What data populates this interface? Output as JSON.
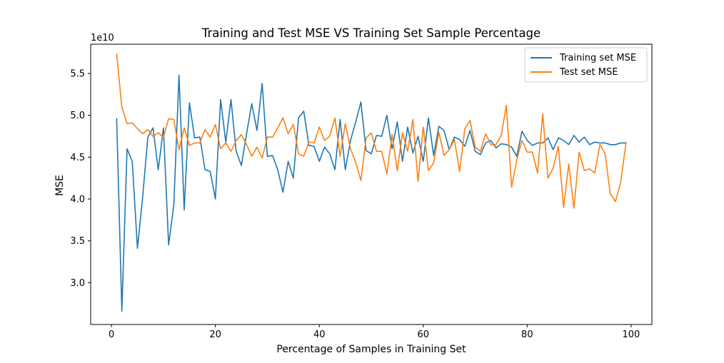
{
  "chart_data": {
    "type": "line",
    "title": "Training and Test MSE VS Training Set Sample Percentage",
    "xlabel": "Percentage of Samples in Training Set",
    "ylabel": "MSE",
    "y_offset_label": "1e10",
    "xlim": [
      -4,
      104
    ],
    "ylim": [
      2.5,
      5.85
    ],
    "xticks": [
      0,
      20,
      40,
      60,
      80,
      100
    ],
    "yticks": [
      3.0,
      3.5,
      4.0,
      4.5,
      5.0,
      5.5
    ],
    "xtick_labels": [
      "0",
      "20",
      "40",
      "60",
      "80",
      "100"
    ],
    "ytick_labels": [
      "3.0",
      "3.5",
      "4.0",
      "4.5",
      "5.0",
      "5.5"
    ],
    "grid": false,
    "legend_position": "top-right",
    "x": [
      1,
      2,
      3,
      4,
      5,
      6,
      7,
      8,
      9,
      10,
      11,
      12,
      13,
      14,
      15,
      16,
      17,
      18,
      19,
      20,
      21,
      22,
      23,
      24,
      25,
      26,
      27,
      28,
      29,
      30,
      31,
      32,
      33,
      34,
      35,
      36,
      37,
      38,
      39,
      40,
      41,
      42,
      43,
      44,
      45,
      46,
      47,
      48,
      49,
      50,
      51,
      52,
      53,
      54,
      55,
      56,
      57,
      58,
      59,
      60,
      61,
      62,
      63,
      64,
      65,
      66,
      67,
      68,
      69,
      70,
      71,
      72,
      73,
      74,
      75,
      76,
      77,
      78,
      79,
      80,
      81,
      82,
      83,
      84,
      85,
      86,
      87,
      88,
      89,
      90,
      91,
      92,
      93,
      94,
      95,
      96,
      97,
      98,
      99
    ],
    "series": [
      {
        "name": "Training set MSE",
        "color": "#1f77b4",
        "values": [
          4.96,
          2.66,
          4.6,
          4.45,
          3.41,
          4.02,
          4.74,
          4.85,
          4.35,
          4.85,
          3.45,
          3.93,
          5.48,
          3.87,
          5.15,
          4.73,
          4.74,
          4.35,
          4.33,
          4.0,
          5.19,
          4.68,
          5.19,
          4.57,
          4.4,
          4.78,
          5.14,
          4.82,
          5.38,
          4.51,
          4.52,
          4.35,
          4.08,
          4.45,
          4.25,
          4.97,
          5.05,
          4.64,
          4.63,
          4.45,
          4.62,
          4.54,
          4.35,
          4.95,
          4.35,
          4.7,
          4.92,
          5.16,
          4.58,
          4.54,
          4.76,
          4.75,
          5.0,
          4.6,
          4.92,
          4.45,
          4.86,
          4.55,
          4.75,
          4.45,
          4.97,
          4.52,
          4.87,
          4.82,
          4.59,
          4.74,
          4.71,
          4.63,
          4.82,
          4.57,
          4.53,
          4.67,
          4.7,
          4.61,
          4.66,
          4.65,
          4.62,
          4.51,
          4.81,
          4.7,
          4.64,
          4.67,
          4.67,
          4.73,
          4.59,
          4.73,
          4.7,
          4.65,
          4.76,
          4.68,
          4.74,
          4.65,
          4.68,
          4.67,
          4.67,
          4.65,
          4.65,
          4.67,
          4.67
        ],
        "values_tail_note": ""
      },
      {
        "name": "Test set MSE",
        "color": "#ff7f0e",
        "values": [
          5.73,
          5.1,
          4.9,
          4.91,
          4.84,
          4.78,
          4.83,
          4.75,
          4.79,
          4.74,
          4.96,
          4.95,
          4.59,
          4.85,
          4.64,
          4.67,
          4.67,
          4.83,
          4.74,
          4.89,
          4.6,
          4.67,
          4.57,
          4.7,
          4.77,
          4.65,
          4.51,
          4.62,
          4.49,
          4.74,
          4.74,
          4.85,
          4.97,
          4.78,
          4.89,
          4.54,
          4.51,
          4.68,
          4.67,
          4.86,
          4.7,
          4.75,
          4.97,
          4.51,
          4.9,
          4.6,
          4.44,
          4.22,
          4.73,
          4.79,
          4.57,
          4.57,
          4.3,
          4.77,
          4.34,
          4.79,
          4.57,
          4.95,
          4.21,
          4.86,
          4.34,
          4.43,
          4.8,
          4.52,
          4.59,
          4.71,
          4.33,
          4.84,
          4.94,
          4.62,
          4.57,
          4.78,
          4.65,
          4.65,
          4.76,
          5.12,
          4.14,
          4.47,
          4.7,
          4.56,
          4.56,
          4.31,
          5.02,
          4.25,
          4.37,
          4.63,
          3.9,
          4.42,
          3.89,
          4.56,
          4.34,
          4.36,
          4.31,
          4.65,
          4.54,
          4.06,
          3.97,
          4.2,
          4.66
        ]
      }
    ]
  }
}
